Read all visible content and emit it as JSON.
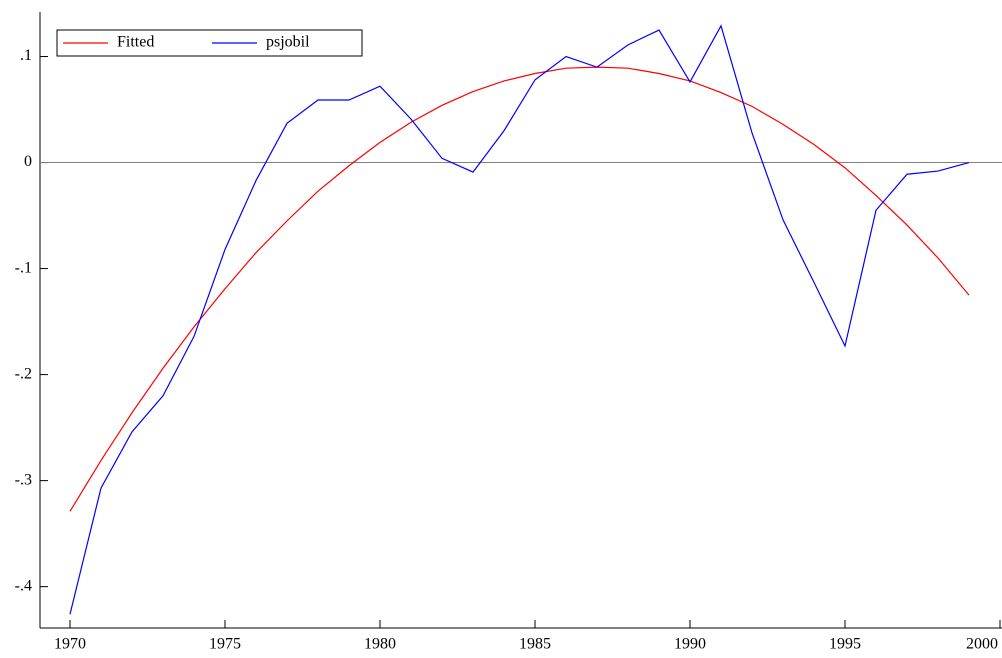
{
  "chart_data": {
    "type": "line",
    "x": [
      1970,
      1971,
      1972,
      1973,
      1974,
      1975,
      1976,
      1977,
      1978,
      1979,
      1980,
      1981,
      1982,
      1983,
      1984,
      1985,
      1986,
      1987,
      1988,
      1989,
      1990,
      1991,
      1992,
      1993,
      1994,
      1995,
      1996,
      1997,
      1998,
      1999
    ],
    "series": [
      {
        "name": "Fitted",
        "color": "#ff0000",
        "values": [
          -0.329,
          -0.281,
          -0.236,
          -0.194,
          -0.155,
          -0.119,
          -0.085,
          -0.055,
          -0.027,
          -0.003,
          0.019,
          0.038,
          0.054,
          0.067,
          0.077,
          0.084,
          0.089,
          0.09,
          0.089,
          0.084,
          0.077,
          0.066,
          0.053,
          0.036,
          0.017,
          -0.005,
          -0.031,
          -0.059,
          -0.09,
          -0.125
        ]
      },
      {
        "name": "psjobil",
        "color": "#0000ff",
        "values": [
          -0.426,
          -0.307,
          -0.254,
          -0.22,
          -0.164,
          -0.082,
          -0.017,
          0.037,
          0.059,
          0.059,
          0.072,
          0.041,
          0.004,
          -0.009,
          0.03,
          0.078,
          0.1,
          0.09,
          0.111,
          0.125,
          0.076,
          0.129,
          0.028,
          -0.054,
          -0.113,
          -0.173,
          -0.045,
          -0.011,
          -0.008,
          0.0
        ]
      }
    ],
    "xlim": [
      1969,
      2000
    ],
    "xticks": [
      1970,
      1975,
      1980,
      1985,
      1990,
      1995,
      2000
    ],
    "ylim": [
      -0.439,
      0.142
    ],
    "yticks": [
      {
        "value": 0.1,
        "label": ".1"
      },
      0,
      {
        "value": -0.1,
        "label": "-.1"
      },
      {
        "value": -0.2,
        "label": "-.2"
      },
      {
        "value": -0.3,
        "label": "-.3"
      },
      {
        "value": -0.4,
        "label": "-.4"
      }
    ],
    "legend": "upper left"
  }
}
